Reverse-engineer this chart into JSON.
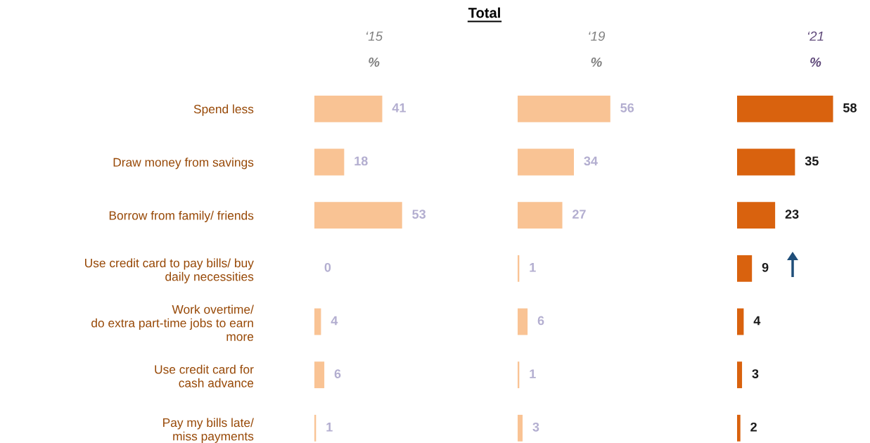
{
  "chart_data": [
    {
      "type": "bar",
      "orientation": "horizontal",
      "title": "‘15",
      "subtitle": "%",
      "categories": [
        "Spend less",
        "Draw money from savings",
        "Borrow from family/ friends",
        "Use credit card to pay bills/ buy\ndaily necessities",
        "Work overtime/\ndo extra part-time jobs to earn\nmore",
        "Use credit card for\ncash advance",
        "Pay my bills late/\nmiss payments"
      ],
      "series": [
        {
          "color": "#f9c394",
          "values": [
            41,
            18,
            53,
            0,
            4,
            6,
            1
          ]
        }
      ],
      "data_labels": true
    },
    {
      "type": "bar",
      "orientation": "horizontal",
      "title": "‘19",
      "subtitle": "%",
      "annotations": [
        "Total"
      ],
      "series": [
        {
          "color": "#f9c394",
          "values": [
            56,
            34,
            27,
            1,
            6,
            1,
            3
          ]
        }
      ],
      "data_labels": true
    },
    {
      "type": "bar",
      "orientation": "horizontal",
      "title": "‘21",
      "subtitle": "%",
      "series": [
        {
          "color": "#d9620e",
          "values": [
            58,
            35,
            23,
            9,
            4,
            3,
            2
          ]
        }
      ],
      "data_labels": true
    }
  ]
}
